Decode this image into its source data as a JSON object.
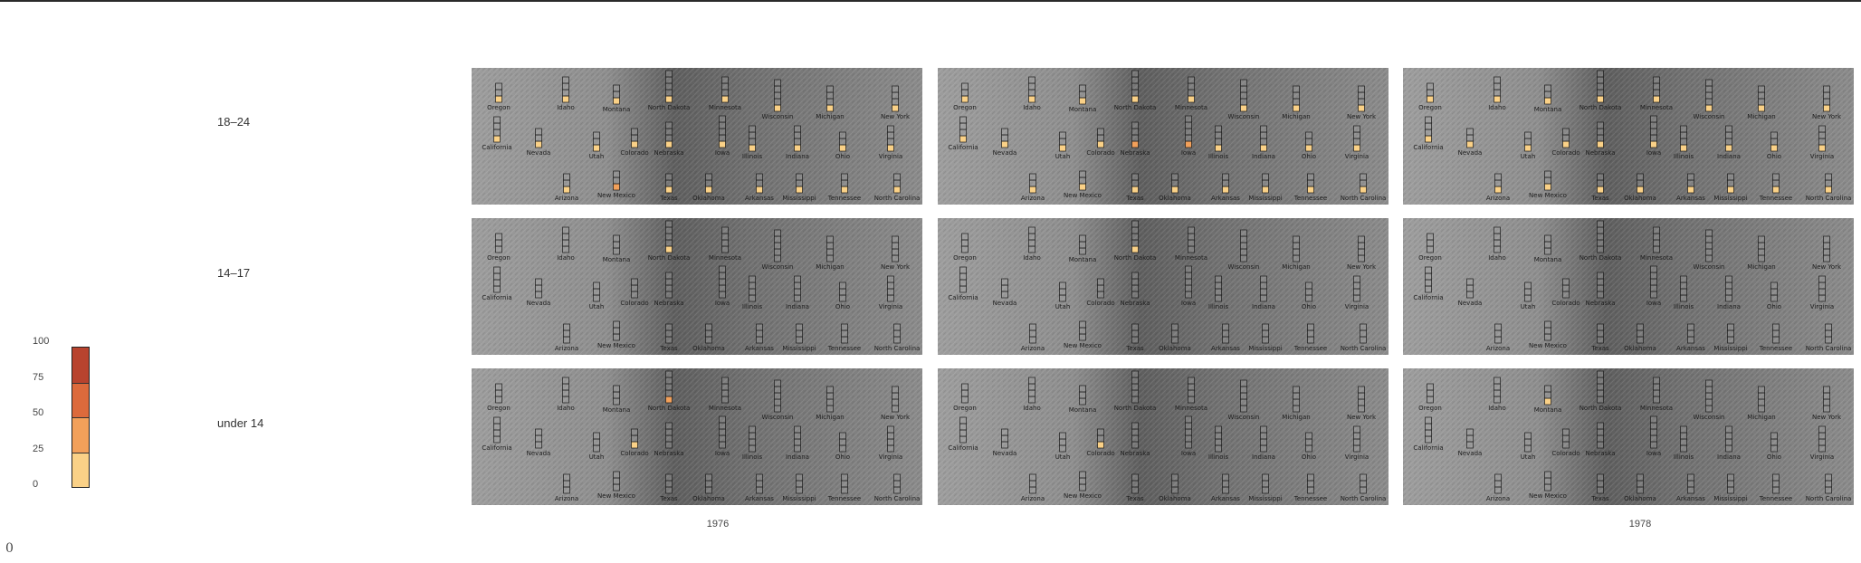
{
  "chart_data": {
    "type": "heatmap",
    "title": "",
    "xlabel": "",
    "ylabel": "",
    "rows": [
      "18-24",
      "14-17",
      "under 14"
    ],
    "columns": [
      "1976",
      "",
      "1978"
    ],
    "column_labels_shown": [
      "1976",
      "1978"
    ],
    "legend": {
      "ticks": [
        "100",
        "75",
        "50",
        "25",
        "0"
      ],
      "colors": [
        "#b8432e",
        "#dc6a3c",
        "#f2a05a",
        "#fad187"
      ],
      "range": [
        0,
        100
      ]
    },
    "states": [
      "Oregon",
      "Idaho",
      "Montana",
      "North Dakota",
      "Minnesota",
      "Wisconsin",
      "Michigan",
      "New York",
      "California",
      "Nevada",
      "Utah",
      "Colorado",
      "Nebraska",
      "Iowa",
      "Illinois",
      "Indiana",
      "Ohio",
      "Virginia",
      "Arizona",
      "New Mexico",
      "Texas",
      "Oklahoma",
      "Arkansas",
      "Mississippi",
      "Tennessee",
      "North Carolina"
    ],
    "panels": [
      {
        "row": "18-24",
        "column": "1976",
        "values": [
          12,
          10,
          8,
          14,
          10,
          12,
          9,
          10,
          11,
          9,
          10,
          8,
          9,
          18,
          11,
          10,
          9,
          12,
          10,
          42,
          8,
          10,
          10,
          9,
          10,
          10
        ]
      },
      {
        "row": "18-24",
        "column": "",
        "values": [
          11,
          10,
          8,
          12,
          10,
          10,
          9,
          11,
          12,
          9,
          10,
          8,
          28,
          40,
          10,
          11,
          9,
          12,
          10,
          10,
          8,
          10,
          12,
          9,
          10,
          10
        ]
      },
      {
        "row": "18-24",
        "column": "1978",
        "values": [
          10,
          9,
          8,
          10,
          10,
          10,
          9,
          10,
          10,
          9,
          10,
          8,
          9,
          10,
          10,
          9,
          9,
          10,
          10,
          10,
          8,
          10,
          10,
          9,
          10,
          10
        ]
      },
      {
        "row": "14-17",
        "column": "1976",
        "values": [
          0,
          0,
          0,
          6,
          0,
          0,
          0,
          0,
          0,
          0,
          0,
          0,
          0,
          0,
          0,
          0,
          0,
          0,
          0,
          0,
          0,
          0,
          0,
          0,
          0,
          0
        ]
      },
      {
        "row": "14-17",
        "column": "",
        "values": [
          0,
          0,
          0,
          5,
          0,
          0,
          0,
          0,
          0,
          0,
          0,
          0,
          0,
          0,
          0,
          0,
          0,
          0,
          0,
          0,
          0,
          0,
          0,
          0,
          0,
          0
        ]
      },
      {
        "row": "14-17",
        "column": "1978",
        "values": [
          0,
          0,
          0,
          0,
          0,
          0,
          0,
          0,
          0,
          0,
          0,
          0,
          0,
          0,
          0,
          0,
          0,
          0,
          0,
          0,
          0,
          0,
          0,
          0,
          0,
          0
        ]
      },
      {
        "row": "under 14",
        "column": "1976",
        "values": [
          0,
          0,
          0,
          30,
          0,
          0,
          0,
          0,
          0,
          0,
          0,
          8,
          0,
          0,
          0,
          0,
          0,
          0,
          0,
          0,
          0,
          0,
          0,
          0,
          0,
          0
        ]
      },
      {
        "row": "under 14",
        "column": "",
        "values": [
          0,
          0,
          0,
          0,
          0,
          0,
          0,
          0,
          0,
          0,
          0,
          6,
          0,
          0,
          0,
          0,
          0,
          0,
          0,
          0,
          0,
          0,
          0,
          0,
          0,
          0
        ]
      },
      {
        "row": "under 14",
        "column": "1978",
        "values": [
          0,
          0,
          6,
          0,
          0,
          0,
          0,
          0,
          0,
          0,
          0,
          0,
          0,
          0,
          0,
          0,
          0,
          0,
          0,
          0,
          0,
          0,
          0,
          0,
          0,
          0
        ]
      }
    ]
  },
  "labels": {
    "row_1": "18–24",
    "row_2": "14–17",
    "row_3": "under 14",
    "year_left": "1976",
    "year_right": "1978",
    "stray_zero": "0"
  },
  "colors": {
    "terrain_light": "#9c9c9c",
    "terrain_dark": "#5e5e5e",
    "glyph_outline": "#1a1a1a",
    "glyph_empty": "#a6a6a6"
  }
}
